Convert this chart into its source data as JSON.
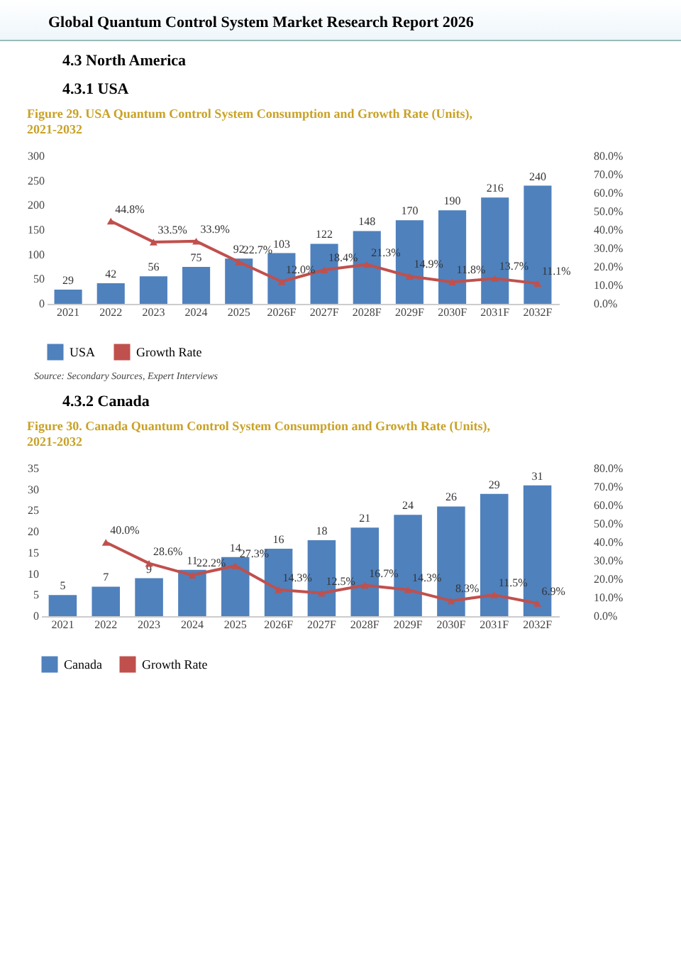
{
  "chart_data": [
    {
      "type": "bar",
      "title": "Figure 29.   USA Quantum Control System Consumption and Growth Rate (Units), 2021-2032",
      "annotations": [
        "Global Quantum Control System Market Research Report 2026",
        "4.3  North America",
        "4.3.1  USA",
        "Source: Secondary Sources, Expert Interviews"
      ],
      "categories": [
        "2021",
        "2022",
        "2023",
        "2024",
        "2025",
        "2026F",
        "2027F",
        "2028F",
        "2029F",
        "2030F",
        "2031F",
        "2032F"
      ],
      "series": [
        {
          "name": "USA",
          "color": "#4f81bd",
          "values": [
            29,
            42,
            56,
            75,
            92,
            103,
            122,
            148,
            170,
            190,
            216,
            240
          ],
          "value_labels": [
            "29",
            "42",
            "56",
            "75",
            "92",
            "103",
            "122",
            "148",
            "170",
            "190",
            "216",
            "240"
          ]
        },
        {
          "name": "Growth Rate",
          "type": "line",
          "axis": "y2",
          "color": "#c0504d",
          "values": [
            null,
            44.8,
            33.5,
            33.9,
            22.7,
            12.0,
            18.4,
            21.3,
            14.9,
            11.8,
            13.7,
            11.1
          ],
          "value_labels": [
            null,
            "44.8%",
            "33.5%",
            "33.9%",
            "22.7%",
            "12.0%",
            "18.4%",
            "21.3%",
            "14.9%",
            "11.8%",
            "13.7%",
            "11.1%"
          ]
        }
      ],
      "ylim": [
        0,
        300
      ],
      "yticks": [
        0,
        50,
        100,
        150,
        200,
        250,
        300
      ],
      "y2lim": [
        0,
        80
      ],
      "y2ticks": [
        {
          "value": 0,
          "label": "0.0%"
        },
        {
          "value": 10,
          "label": "10.0%"
        },
        {
          "value": 20,
          "label": "20.0%"
        },
        {
          "value": 30,
          "label": "30.0%"
        },
        {
          "value": 40,
          "label": "40.0%"
        },
        {
          "value": 50,
          "label": "50.0%"
        },
        {
          "value": 60,
          "label": "60.0%"
        },
        {
          "value": 70,
          "label": "70.0%"
        },
        {
          "value": 80,
          "label": "80.0%"
        }
      ],
      "marker": "triangle",
      "legend": "bottom"
    },
    {
      "type": "bar",
      "title": "Figure 30.   Canada Quantum Control System Consumption and Growth Rate (Units), 2021-2032",
      "annotations": [
        "4.3.2  Canada"
      ],
      "categories": [
        "2021",
        "2022",
        "2023",
        "2024",
        "2025",
        "2026F",
        "2027F",
        "2028F",
        "2029F",
        "2030F",
        "2031F",
        "2032F"
      ],
      "series": [
        {
          "name": "Canada",
          "color": "#4f81bd",
          "values": [
            5,
            7,
            9,
            11,
            14,
            16,
            18,
            21,
            24,
            26,
            29,
            31
          ],
          "value_labels": [
            "5",
            "7",
            "9",
            "11",
            "14",
            "16",
            "18",
            "21",
            "24",
            "26",
            "29",
            "31"
          ]
        },
        {
          "name": "Growth Rate",
          "type": "line",
          "axis": "y2",
          "color": "#c0504d",
          "values": [
            null,
            40.0,
            28.6,
            22.2,
            27.3,
            14.3,
            12.5,
            16.7,
            14.3,
            8.3,
            11.5,
            6.9
          ],
          "value_labels": [
            null,
            "40.0%",
            "28.6%",
            "22.2%",
            "27.3%",
            "14.3%",
            "12.5%",
            "16.7%",
            "14.3%",
            "8.3%",
            "11.5%",
            "6.9%"
          ]
        }
      ],
      "ylim": [
        0,
        35
      ],
      "yticks": [
        0,
        5,
        10,
        15,
        20,
        25,
        30,
        35
      ],
      "y2lim": [
        0,
        80
      ],
      "y2ticks": [
        {
          "value": 0,
          "label": "0.0%"
        },
        {
          "value": 10,
          "label": "10.0%"
        },
        {
          "value": 20,
          "label": "20.0%"
        },
        {
          "value": 30,
          "label": "30.0%"
        },
        {
          "value": 40,
          "label": "40.0%"
        },
        {
          "value": 50,
          "label": "50.0%"
        },
        {
          "value": 60,
          "label": "60.0%"
        },
        {
          "value": 70,
          "label": "70.0%"
        },
        {
          "value": 80,
          "label": "80.0%"
        }
      ],
      "marker": "triangle",
      "legend": "bottom"
    }
  ]
}
